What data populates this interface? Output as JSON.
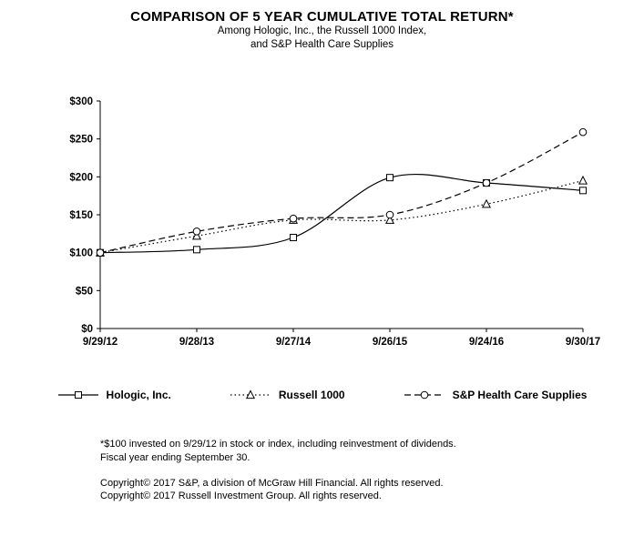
{
  "title": "COMPARISON OF 5 YEAR CUMULATIVE TOTAL RETURN*",
  "subtitle_line1": "Among Hologic, Inc., the Russell 1000 Index,",
  "subtitle_line2": "and S&P Health Care Supplies",
  "chart_data": {
    "type": "line",
    "categories": [
      "9/29/12",
      "9/28/13",
      "9/27/14",
      "9/26/15",
      "9/24/16",
      "9/30/17"
    ],
    "series": [
      {
        "name": "Hologic, Inc.",
        "marker": "square",
        "dash": "solid",
        "values": [
          100,
          104,
          120,
          199,
          192,
          182
        ]
      },
      {
        "name": "Russell 1000",
        "marker": "triangle",
        "dash": "dotted",
        "values": [
          100,
          122,
          143,
          143,
          164,
          195
        ]
      },
      {
        "name": "S&P Health Care Supplies",
        "marker": "circle",
        "dash": "dashed",
        "values": [
          100,
          128,
          145,
          150,
          192,
          259
        ]
      }
    ],
    "ylim": [
      0,
      300
    ],
    "ytick_step": 50,
    "ytick_labels": [
      "$0",
      "$50",
      "$100",
      "$150",
      "$200",
      "$250",
      "$300"
    ],
    "line_color": "#000000",
    "grid": false,
    "legend_position": "bottom"
  },
  "footnotes": [
    "*$100 invested on 9/29/12 in stock or index, including reinvestment of dividends.",
    "Fiscal year ending September 30."
  ],
  "copyright": [
    "Copyright© 2017 S&P, a division of McGraw Hill Financial. All rights reserved.",
    "Copyright© 2017 Russell Investment Group. All rights reserved."
  ]
}
